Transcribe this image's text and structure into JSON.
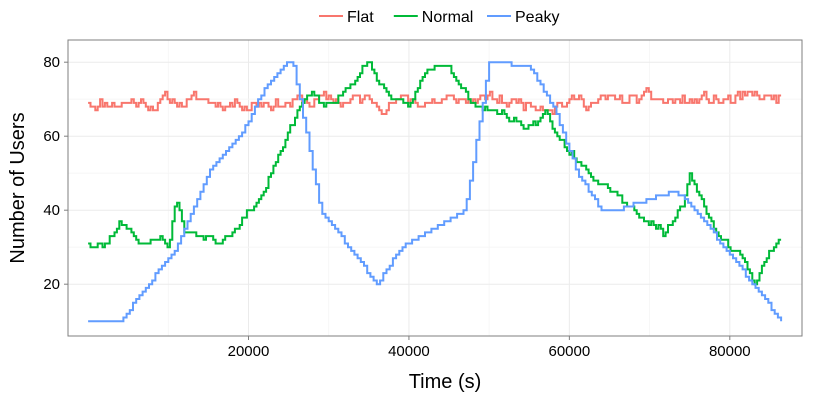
{
  "chart_data": {
    "type": "line",
    "title": "",
    "xlabel": "Time (s)",
    "ylabel": "Number of Users",
    "xlim": [
      -2500,
      89000
    ],
    "ylim": [
      6,
      86
    ],
    "x_ticks": [
      20000,
      40000,
      60000,
      80000
    ],
    "x_tick_labels": [
      "20000",
      "40000",
      "60000",
      "80000"
    ],
    "y_ticks": [
      20,
      40,
      60,
      80
    ],
    "y_tick_labels": [
      "20",
      "40",
      "60",
      "80"
    ],
    "grid": true,
    "legend_position": "top",
    "series": [
      {
        "name": "Flat",
        "color": "#f8766d",
        "step": 300,
        "x_start": 0,
        "x_end": 86400,
        "center": 69.5,
        "amplitude": 3.2,
        "noise_seed": 11
      },
      {
        "name": "Normal",
        "color": "#00ba38",
        "step": 300,
        "noise_seed": 23,
        "noise_amplitude": 3,
        "points": [
          [
            0,
            31
          ],
          [
            2000,
            30
          ],
          [
            4000,
            37
          ],
          [
            5000,
            36
          ],
          [
            7000,
            30
          ],
          [
            9000,
            33
          ],
          [
            10000,
            30
          ],
          [
            11000,
            44
          ],
          [
            12000,
            34
          ],
          [
            15000,
            33
          ],
          [
            16000,
            31
          ],
          [
            18000,
            35
          ],
          [
            20000,
            40
          ],
          [
            22000,
            45
          ],
          [
            24000,
            56
          ],
          [
            25500,
            63
          ],
          [
            26500,
            69
          ],
          [
            28000,
            72
          ],
          [
            29000,
            68
          ],
          [
            31000,
            70
          ],
          [
            33000,
            75
          ],
          [
            35000,
            80
          ],
          [
            36000,
            75
          ],
          [
            38000,
            70
          ],
          [
            40000,
            67
          ],
          [
            41000,
            73
          ],
          [
            43000,
            79
          ],
          [
            45000,
            80
          ],
          [
            46000,
            74
          ],
          [
            48000,
            69
          ],
          [
            50000,
            67
          ],
          [
            52000,
            66
          ],
          [
            54000,
            63
          ],
          [
            56000,
            62
          ],
          [
            57000,
            67
          ],
          [
            58000,
            61
          ],
          [
            60000,
            56
          ],
          [
            62000,
            52
          ],
          [
            64000,
            48
          ],
          [
            66000,
            45
          ],
          [
            68000,
            40
          ],
          [
            70000,
            37
          ],
          [
            72000,
            34
          ],
          [
            74000,
            40
          ],
          [
            75000,
            49
          ],
          [
            76000,
            45
          ],
          [
            78000,
            35
          ],
          [
            80000,
            30
          ],
          [
            82000,
            26
          ],
          [
            83000,
            20
          ],
          [
            84000,
            25
          ],
          [
            86400,
            33
          ]
        ]
      },
      {
        "name": "Peaky",
        "color": "#619cff",
        "step": 400,
        "points": [
          [
            0,
            10
          ],
          [
            4000,
            10
          ],
          [
            11000,
            30
          ],
          [
            15000,
            50
          ],
          [
            19000,
            60
          ],
          [
            22000,
            73
          ],
          [
            25000,
            80
          ],
          [
            25500,
            80
          ],
          [
            29000,
            40
          ],
          [
            36000,
            20
          ],
          [
            39000,
            30
          ],
          [
            43000,
            35
          ],
          [
            47000,
            40
          ],
          [
            50000,
            80
          ],
          [
            55000,
            79
          ],
          [
            58000,
            68
          ],
          [
            61000,
            50
          ],
          [
            64000,
            40
          ],
          [
            66000,
            40
          ],
          [
            70000,
            43
          ],
          [
            73000,
            45
          ],
          [
            75000,
            42
          ],
          [
            80000,
            28
          ],
          [
            86400,
            10
          ]
        ]
      }
    ]
  }
}
